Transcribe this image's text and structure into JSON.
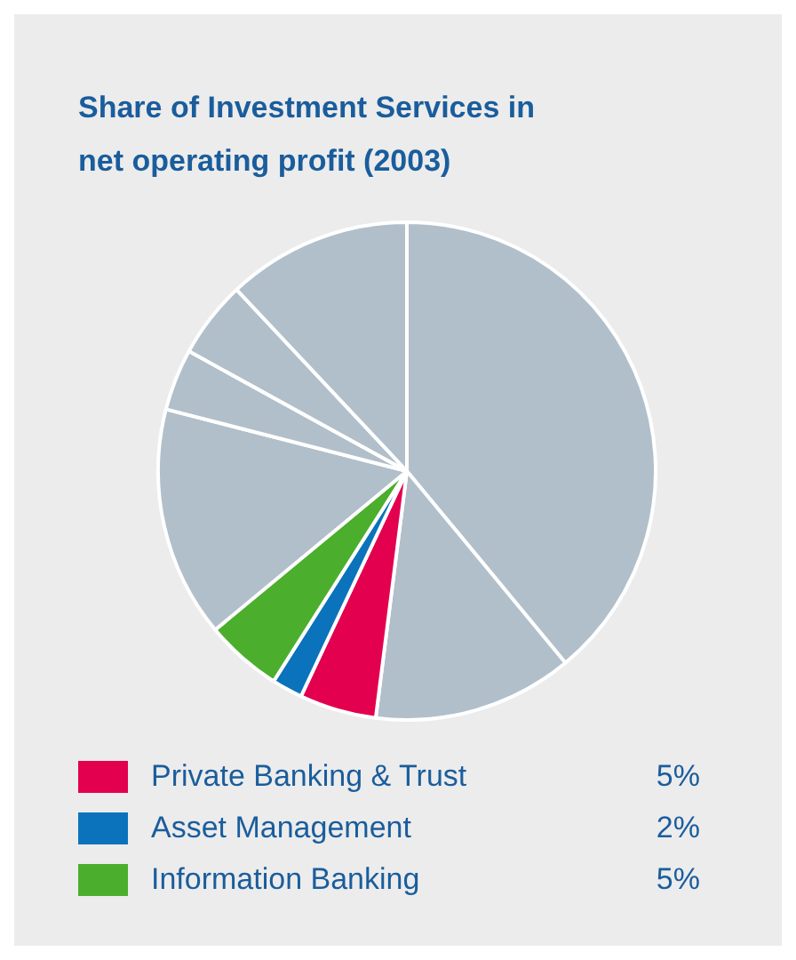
{
  "chart_data": {
    "type": "pie",
    "title": "Share of Investment Services in net operating profit (2003)",
    "categories": [
      null,
      null,
      "Private Banking & Trust",
      "Asset Management",
      "Information Banking",
      null,
      null,
      null,
      null
    ],
    "values": [
      39,
      13,
      5,
      2,
      5,
      15,
      4,
      5,
      12
    ],
    "colors": [
      "#b1bfca",
      "#b1bfca",
      "#e2004f",
      "#0b73bb",
      "#4cae2d",
      "#b1bfca",
      "#b1bfca",
      "#b1bfca",
      "#b1bfca"
    ],
    "value_labels": [
      null,
      null,
      "5%",
      "2%",
      "5%",
      null,
      null,
      null,
      null
    ],
    "legend": "bottom"
  }
}
